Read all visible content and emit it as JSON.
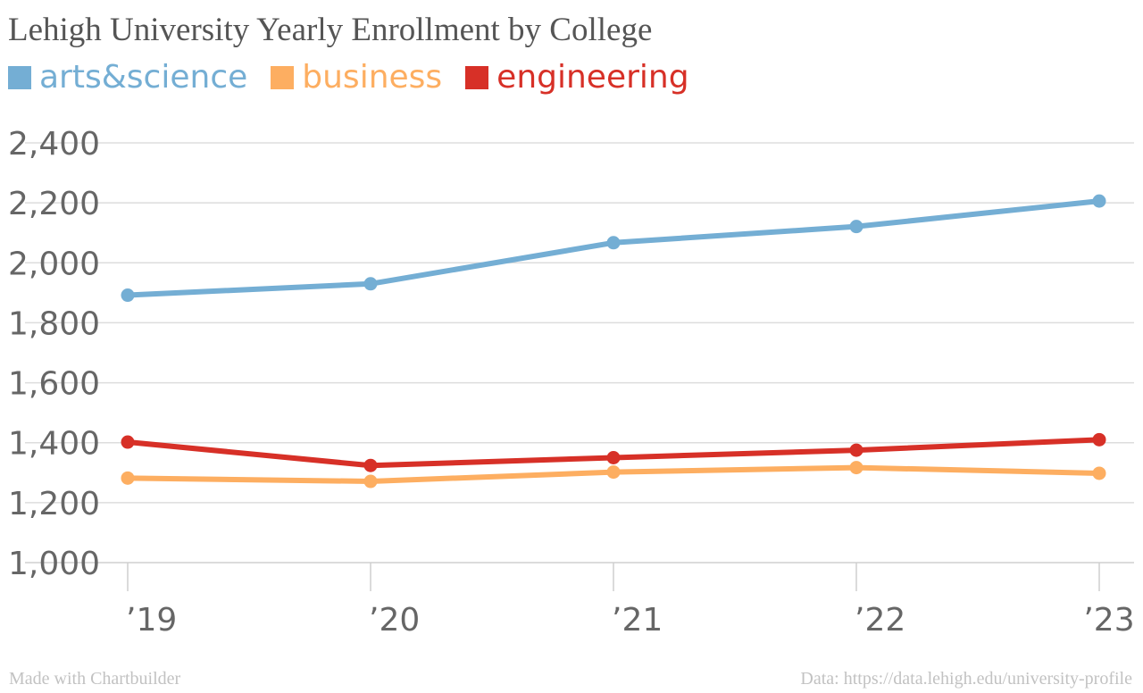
{
  "chart_data": {
    "type": "line",
    "title": "Lehigh University Yearly Enrollment by College",
    "x": [
      "’19",
      "’20",
      "’21",
      "’22",
      "’23"
    ],
    "series": [
      {
        "name": "arts&science",
        "color": "#74aed4",
        "values": [
          1892,
          1930,
          2067,
          2121,
          2206
        ]
      },
      {
        "name": "business",
        "color": "#fdae61",
        "values": [
          1282,
          1271,
          1302,
          1317,
          1298
        ]
      },
      {
        "name": "engineering",
        "color": "#d73027",
        "values": [
          1402,
          1324,
          1350,
          1375,
          1410
        ]
      }
    ],
    "ylim": [
      1000,
      2400
    ],
    "yticks": [
      1000,
      1200,
      1400,
      1600,
      1800,
      2000,
      2200,
      2400
    ],
    "ytick_labels": [
      "1,000",
      "1,200",
      "1,400",
      "1,600",
      "1,800",
      "2,000",
      "2,200",
      "2,400"
    ],
    "xlabel": "",
    "ylabel": "",
    "grid": true,
    "legend": "top-left"
  },
  "footer": {
    "credit": "Made with Chartbuilder",
    "source": "Data: https://data.lehigh.edu/university-profile"
  }
}
